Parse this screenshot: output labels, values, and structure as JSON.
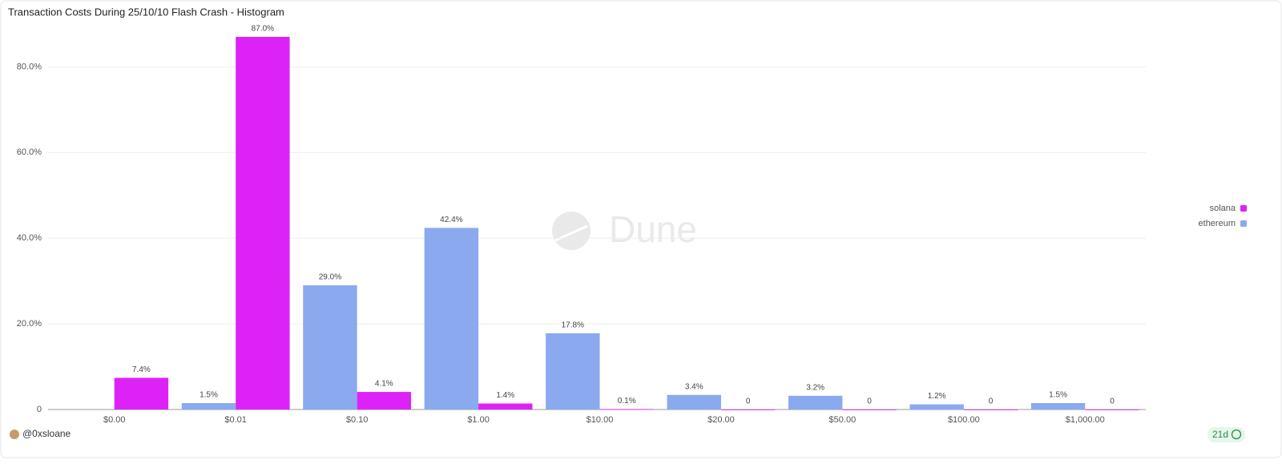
{
  "chart_data": {
    "type": "bar",
    "title": "Transaction Costs During 25/10/10 Flash Crash - Histogram",
    "categories": [
      "$0.00",
      "$0.01",
      "$0.10",
      "$1.00",
      "$10.00",
      "$20.00",
      "$50.00",
      "$100.00",
      "$1,000.00"
    ],
    "series": [
      {
        "name": "solana",
        "color": "#dd22f8",
        "values": [
          7.4,
          87.0,
          4.1,
          1.4,
          0.1,
          0,
          0,
          0,
          0
        ],
        "value_labels": [
          "7.4%",
          "87.0%",
          "4.1%",
          "1.4%",
          "0.1%",
          "0",
          "0",
          "0",
          "0"
        ]
      },
      {
        "name": "ethereum",
        "color": "#8aa9ef",
        "values": [
          null,
          1.5,
          29.0,
          42.4,
          17.8,
          3.4,
          3.2,
          1.2,
          1.5
        ],
        "value_labels": [
          null,
          "1.5%",
          "29.0%",
          "42.4%",
          "17.8%",
          "3.4%",
          "3.2%",
          "1.2%",
          "1.5%"
        ]
      }
    ],
    "ylim": [
      0,
      90
    ],
    "yticks": [
      0,
      {
        "value": 20,
        "label": "20.0%"
      },
      {
        "value": 40,
        "label": "40.0%"
      },
      {
        "value": 60,
        "label": "60.0%"
      },
      {
        "value": 80,
        "label": "80.0%"
      }
    ],
    "grid": true,
    "legend": "right",
    "watermark": "Dune"
  },
  "footer": {
    "author": "@0xsloane",
    "age": "21d"
  }
}
